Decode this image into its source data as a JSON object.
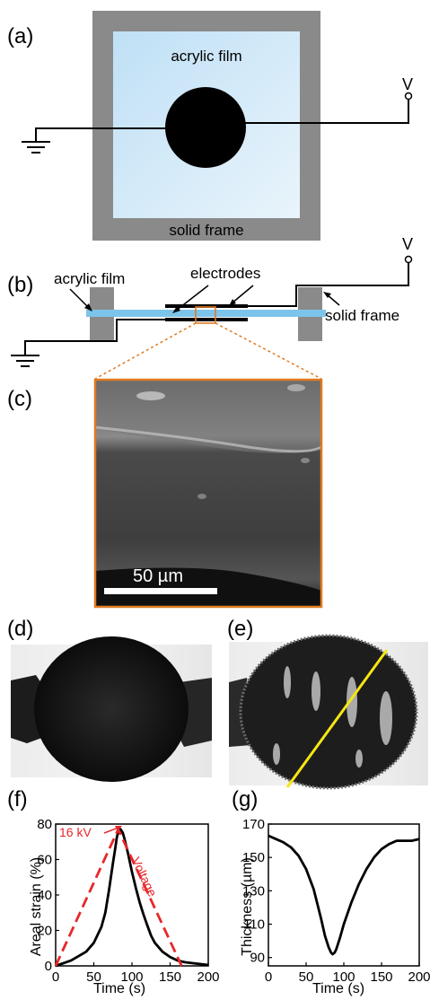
{
  "panels": {
    "a": {
      "label": "(a)",
      "film_label": "acrylic film",
      "frame_label": "solid frame",
      "voltage_label": "V"
    },
    "b": {
      "label": "(b)",
      "film_label": "acrylic film",
      "electrodes_label": "electrodes",
      "frame_label": "solid frame",
      "voltage_label": "V"
    },
    "c": {
      "label": "(c)",
      "scalebar_label": "50 µm"
    },
    "d": {
      "label": "(d)"
    },
    "e": {
      "label": "(e)"
    },
    "f": {
      "label": "(f)",
      "annotation_voltage": "16 kV",
      "annotation_curve": "Voltage"
    },
    "g": {
      "label": "(g)"
    }
  },
  "chart_data": [
    {
      "panel": "f",
      "type": "line",
      "xlabel": "Time (s)",
      "ylabel": "Areal strain (%)",
      "xlim": [
        0,
        200
      ],
      "ylim": [
        0,
        80
      ],
      "xticks": [
        0,
        50,
        100,
        150,
        200
      ],
      "yticks": [
        0,
        20,
        40,
        60,
        80
      ],
      "series": [
        {
          "color": "#000000",
          "style": "solid",
          "x": [
            0,
            20,
            40,
            50,
            60,
            65,
            70,
            75,
            78,
            80,
            82,
            85,
            88,
            90,
            95,
            100,
            105,
            110,
            115,
            120,
            125,
            130,
            140,
            150,
            160,
            170,
            180,
            190,
            200
          ],
          "y": [
            0,
            3,
            8,
            13,
            22,
            30,
            43,
            58,
            66,
            72,
            76,
            77,
            75,
            72,
            63,
            53,
            44,
            36,
            29,
            23,
            17,
            13,
            8,
            5,
            3,
            2,
            1.5,
            1,
            0.5
          ]
        },
        {
          "color": "#e8262a",
          "style": "dashed",
          "x": [
            0,
            82,
            165
          ],
          "y": [
            0,
            77,
            0
          ]
        }
      ]
    },
    {
      "panel": "g",
      "type": "line",
      "xlabel": "Time (s)",
      "ylabel": "Thickness (µm)",
      "xlim": [
        0,
        200
      ],
      "ylim": [
        85,
        170
      ],
      "xticks": [
        0,
        50,
        100,
        150,
        200
      ],
      "yticks": [
        90,
        110,
        130,
        150,
        170
      ],
      "series": [
        {
          "color": "#000000",
          "style": "solid",
          "x": [
            0,
            10,
            20,
            30,
            40,
            50,
            60,
            65,
            70,
            75,
            80,
            83,
            85,
            88,
            90,
            95,
            100,
            110,
            120,
            130,
            140,
            150,
            160,
            170,
            180,
            190,
            200
          ],
          "y": [
            163,
            161,
            159,
            156,
            151,
            143,
            131,
            122,
            113,
            103,
            96,
            93,
            92,
            93,
            95,
            102,
            110,
            123,
            134,
            143,
            150,
            155,
            158,
            160,
            160,
            160,
            161
          ]
        }
      ]
    }
  ],
  "colors": {
    "frame_gray": "#8a8a8a",
    "film_blue": "#cfe6f5",
    "film_strip": "#7dc4ea",
    "zoom_orange": "#e07b22",
    "scan_line": "#f5e614",
    "annotation_red": "#e8262a"
  }
}
